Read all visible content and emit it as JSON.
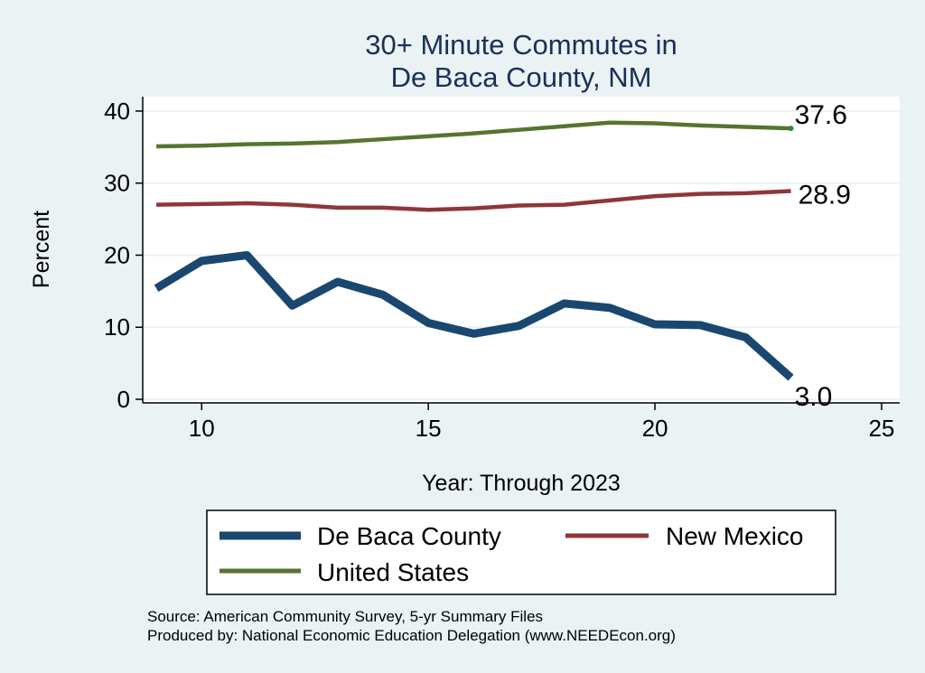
{
  "chart_data": {
    "type": "line",
    "title_lines": [
      "30+ Minute Commutes in",
      "De Baca County, NM"
    ],
    "xlabel": "Year: Through 2023",
    "ylabel": "Percent",
    "xlim": [
      8.7,
      25.4
    ],
    "ylim": [
      -0.5,
      42
    ],
    "x_ticks": [
      10,
      15,
      20,
      25
    ],
    "y_ticks": [
      0,
      10,
      20,
      30,
      40
    ],
    "grid": true,
    "legend_position": "bottom",
    "series": [
      {
        "name": "De Baca County",
        "color": "#1a476f",
        "x": [
          9,
          10,
          11,
          12,
          13,
          14,
          15,
          16,
          17,
          18,
          19,
          20,
          21,
          22,
          23
        ],
        "values": [
          15.4,
          19.2,
          20.0,
          13.0,
          16.3,
          14.5,
          10.6,
          9.1,
          10.2,
          13.3,
          12.7,
          10.4,
          10.3,
          8.6,
          3.0
        ],
        "end_label": "3.0"
      },
      {
        "name": "New Mexico",
        "color": "#90353b",
        "x": [
          9,
          10,
          11,
          12,
          13,
          14,
          15,
          16,
          17,
          18,
          19,
          20,
          21,
          22,
          23
        ],
        "values": [
          27.0,
          27.1,
          27.2,
          27.0,
          26.6,
          26.6,
          26.3,
          26.5,
          26.9,
          27.0,
          27.6,
          28.2,
          28.5,
          28.6,
          28.9
        ],
        "end_label": "28.9"
      },
      {
        "name": "United States",
        "color": "#55752f",
        "x": [
          9,
          10,
          11,
          12,
          13,
          14,
          15,
          16,
          17,
          18,
          19,
          20,
          21,
          22,
          23
        ],
        "values": [
          35.1,
          35.2,
          35.4,
          35.5,
          35.7,
          36.1,
          36.5,
          36.9,
          37.4,
          37.9,
          38.4,
          38.3,
          38.0,
          37.8,
          37.6
        ],
        "end_label": "37.6"
      }
    ]
  },
  "legend": {
    "row1": [
      "De Baca County",
      "New Mexico"
    ],
    "row2": [
      "United States"
    ]
  },
  "notes": {
    "source": "Source: American Community Survey, 5-yr Summary Files",
    "produced": "Produced by: National Economic Education Delegation (www.NEEDEcon.org)"
  }
}
